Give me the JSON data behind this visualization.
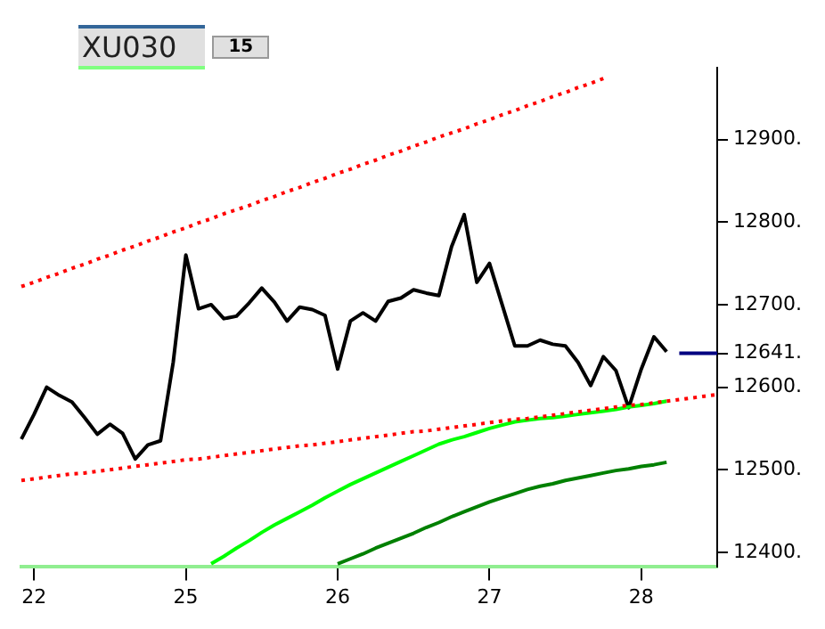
{
  "chart_data": {
    "type": "line",
    "title": "XU030",
    "subtitle": "15",
    "categories": [
      null,
      "22",
      null,
      null,
      null,
      null,
      null,
      null,
      null,
      null,
      null,
      null,
      null,
      "25",
      null,
      null,
      null,
      null,
      null,
      null,
      null,
      null,
      null,
      null,
      null,
      "26",
      null,
      null,
      null,
      null,
      null,
      null,
      null,
      null,
      null,
      null,
      null,
      "27",
      null,
      null,
      null,
      null,
      null,
      null,
      null,
      null,
      null,
      null,
      null,
      "28",
      null,
      null,
      null,
      null,
      null,
      null
    ],
    "ylim": [
      12383,
      12987
    ],
    "yticks": [
      {
        "value": 12400,
        "label": "12400."
      },
      {
        "value": 12500,
        "label": "12500."
      },
      {
        "value": 12600,
        "label": "12600."
      },
      {
        "value": 12641,
        "label": "12641."
      },
      {
        "value": 12700,
        "label": "12700."
      },
      {
        "value": 12800,
        "label": "12800."
      },
      {
        "value": 12900,
        "label": "12900."
      }
    ],
    "grid": false,
    "legend": false,
    "marker": "none",
    "series": [
      {
        "color": "#ff0000",
        "line_style": "dotted",
        "values": [
          12722,
          12727,
          12733,
          12738,
          12744,
          12749,
          12755,
          12760,
          12766,
          12771,
          12777,
          12782,
          12788,
          12793,
          12799,
          12804,
          12810,
          12815,
          12820,
          12826,
          12831,
          12837,
          12842,
          12848,
          12853,
          12859,
          12864,
          12870,
          12875,
          12881,
          12886,
          12892,
          12897,
          12903,
          12908,
          12913,
          12919,
          12924,
          12930,
          12935,
          12941,
          12946,
          12952,
          12957,
          12963,
          12968,
          12974,
          null,
          null,
          null,
          null,
          null,
          null,
          null,
          null,
          null
        ]
      },
      {
        "color": "#ff0000",
        "line_style": "dotted",
        "values": [
          12487,
          12489,
          12491,
          12493,
          12495,
          12496,
          12498,
          12500,
          12502,
          12504,
          12506,
          12508,
          12510,
          12512,
          12513,
          12515,
          12517,
          12519,
          12521,
          12523,
          12525,
          12527,
          12529,
          12530,
          12532,
          12534,
          12536,
          12538,
          12540,
          12542,
          12544,
          12546,
          12547,
          12549,
          12551,
          12553,
          12555,
          12557,
          12559,
          12561,
          12562,
          12564,
          12566,
          12568,
          12570,
          12572,
          12574,
          12576,
          12578,
          12579,
          12581,
          12583,
          12585,
          12587,
          12589,
          12591
        ]
      },
      {
        "color": "#00ff00",
        "line_style": "solid",
        "values": [
          null,
          null,
          null,
          null,
          null,
          null,
          null,
          null,
          null,
          null,
          null,
          null,
          null,
          null,
          null,
          12386,
          12395,
          12405,
          12414,
          12424,
          12433,
          12441,
          12449,
          12457,
          12466,
          12474,
          12482,
          12489,
          12496,
          12503,
          12510,
          12517,
          12524,
          12531,
          12536,
          12540,
          12545,
          12550,
          12554,
          12558,
          12560,
          12562,
          12563,
          12565,
          12567,
          12569,
          12571,
          12573,
          12576,
          12578,
          12580,
          12583,
          null,
          null,
          null,
          null
        ]
      },
      {
        "color": "#008000",
        "line_style": "solid",
        "values": [
          null,
          null,
          null,
          null,
          null,
          null,
          null,
          null,
          null,
          null,
          null,
          null,
          null,
          null,
          null,
          null,
          null,
          null,
          null,
          null,
          null,
          null,
          null,
          null,
          null,
          12386,
          12392,
          12398,
          12405,
          12411,
          12417,
          12423,
          12430,
          12436,
          12443,
          12449,
          12455,
          12461,
          12466,
          12471,
          12476,
          12480,
          12483,
          12487,
          12490,
          12493,
          12496,
          12499,
          12501,
          12504,
          12506,
          12509,
          null,
          null,
          null,
          null
        ]
      },
      {
        "color": "#000080",
        "line_style": "solid",
        "values": [
          null,
          null,
          null,
          null,
          null,
          null,
          null,
          null,
          null,
          null,
          null,
          null,
          null,
          null,
          null,
          null,
          null,
          null,
          null,
          null,
          null,
          null,
          null,
          null,
          null,
          null,
          null,
          null,
          null,
          null,
          null,
          null,
          null,
          null,
          null,
          null,
          null,
          null,
          null,
          null,
          null,
          null,
          null,
          null,
          null,
          null,
          null,
          null,
          null,
          null,
          null,
          null,
          12641,
          12641,
          12641,
          12641
        ]
      },
      {
        "color": "#000000",
        "line_style": "solid",
        "values": [
          12537,
          12567,
          12600,
          12590,
          12582,
          12563,
          12543,
          12555,
          12544,
          12513,
          12530,
          12535,
          12630,
          12760,
          12695,
          12700,
          12683,
          12686,
          12702,
          12720,
          12703,
          12680,
          12697,
          12694,
          12687,
          12622,
          12680,
          12690,
          12680,
          12704,
          12708,
          12718,
          12714,
          12711,
          12770,
          12809,
          12727,
          12750,
          12700,
          12650,
          12650,
          12657,
          12652,
          12650,
          12630,
          12602,
          12637,
          12620,
          12575,
          12622,
          12661,
          12643,
          null,
          null,
          null,
          null
        ]
      }
    ]
  }
}
